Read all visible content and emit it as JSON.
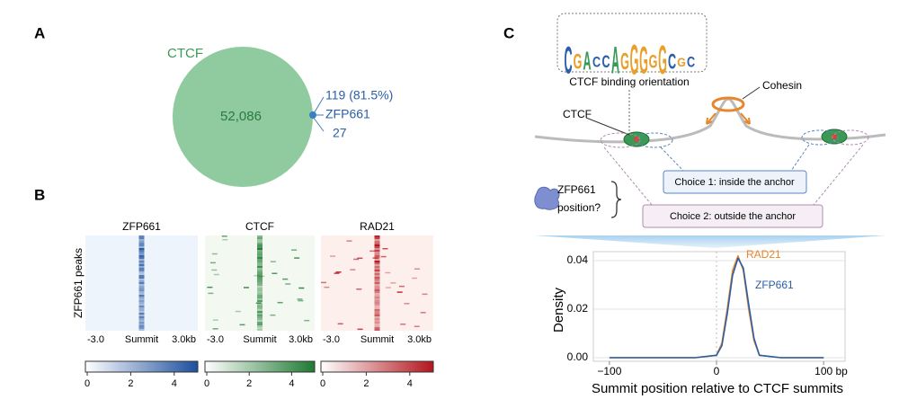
{
  "panel_labels": [
    "A",
    "B",
    "C"
  ],
  "venn": {
    "set1": "CTCF",
    "set1_only": "52,086",
    "overlap": "119 (81.5%)",
    "set2": "ZFP661",
    "set2_only": "27"
  },
  "heatmaps": {
    "row_label": "ZFP661 peaks",
    "maps": [
      {
        "title": "ZFP661",
        "color": "#1c4f9e",
        "background": "#eef4fb",
        "x_labels": [
          "-3.0",
          "Summit",
          "3.0kb"
        ],
        "colorbar_lim": [
          0,
          5
        ],
        "colorbar_ticks": [
          0,
          2,
          4
        ]
      },
      {
        "title": "CTCF",
        "color": "#1e7a32",
        "background": "#f3f9f1",
        "x_labels": [
          "-3.0",
          "Summit",
          "3.0kb"
        ],
        "colorbar_lim": [
          0,
          5
        ],
        "colorbar_ticks": [
          0,
          2,
          4
        ]
      },
      {
        "title": "RAD21",
        "color": "#b3151d",
        "background": "#fdf0ec",
        "x_labels": [
          "-3.0",
          "Summit",
          "3.0kb"
        ],
        "colorbar_lim": [
          0,
          5
        ],
        "colorbar_ticks": [
          0,
          2,
          4
        ]
      }
    ]
  },
  "diagram": {
    "motif_letters": [
      "C",
      "G",
      "A",
      "C",
      "C",
      "A",
      "G",
      "G",
      "G",
      "G",
      "G",
      "C",
      "G",
      "C"
    ],
    "motif_label": "CTCF binding orientation",
    "cohesin": "Cohesin",
    "ctcf": "CTCF",
    "choice1": "Choice 1: inside the anchor",
    "choice2": "Choice 2: outside the anchor",
    "question": [
      "ZFP661",
      "position?"
    ]
  },
  "chart_data": {
    "type": "line",
    "xlabel": "Summit position relative to CTCF summits",
    "ylabel": "Density",
    "x": [
      -100,
      -80,
      -60,
      -40,
      -20,
      0,
      5,
      10,
      15,
      20,
      25,
      30,
      35,
      40,
      60,
      80,
      100
    ],
    "series": [
      {
        "name": "RAD21",
        "color": "#e8862a",
        "values": [
          0,
          0,
          0,
          0,
          0,
          0.001,
          0.006,
          0.02,
          0.036,
          0.042,
          0.036,
          0.02,
          0.007,
          0.001,
          0,
          0,
          0
        ]
      },
      {
        "name": "ZFP661",
        "color": "#2a5ea8",
        "values": [
          0,
          0,
          0,
          0,
          0,
          0.001,
          0.005,
          0.018,
          0.034,
          0.041,
          0.037,
          0.022,
          0.008,
          0.001,
          0,
          0,
          0
        ]
      }
    ],
    "xlim": [
      -115,
      120
    ],
    "ylim": [
      -0.0015,
      0.0437
    ],
    "xticks": [
      {
        "value": -100,
        "label": "−100"
      },
      0,
      {
        "value": 100,
        "label": "100 bp"
      }
    ],
    "yticks": [
      {
        "value": 0,
        "label": "0.00"
      },
      {
        "value": 0.02,
        "label": "0.02"
      },
      {
        "value": 0.04,
        "label": "0.04"
      }
    ],
    "grid": true
  }
}
